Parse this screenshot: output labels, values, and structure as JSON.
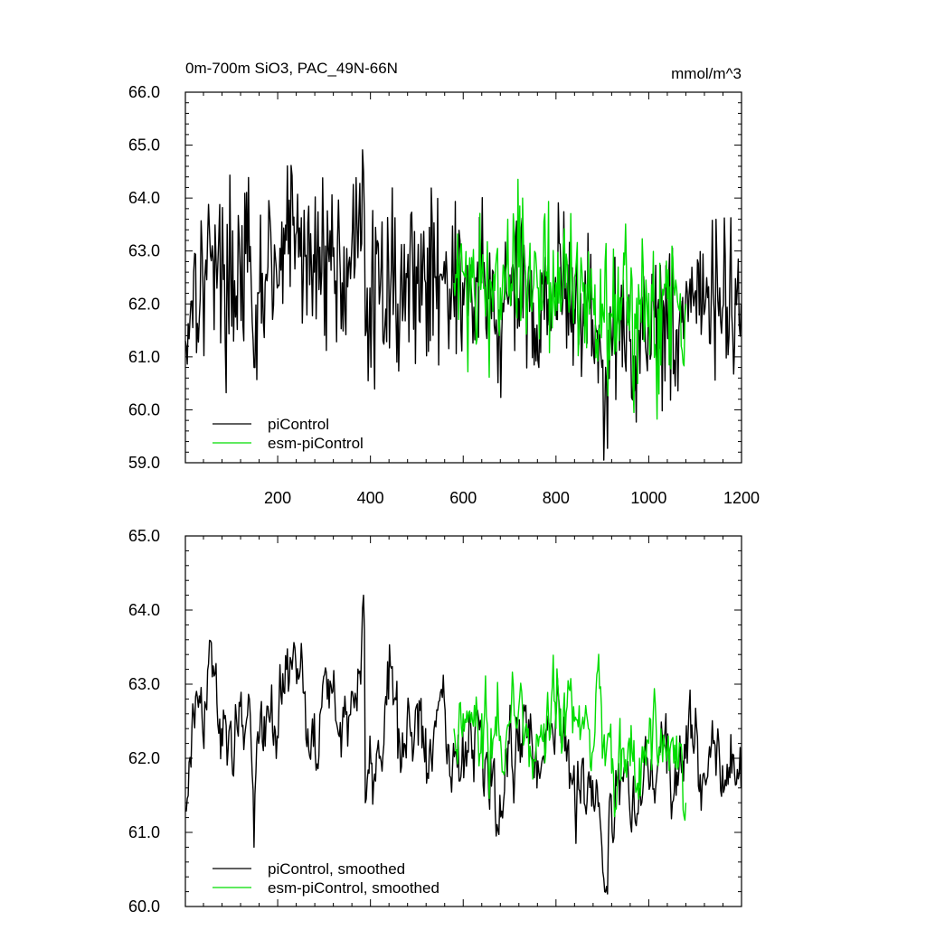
{
  "chart_data": [
    {
      "type": "line",
      "title": "0m-700m SiO3, PAC_49N-66N",
      "units": "mmol/m^3",
      "xlim": [
        1,
        1200
      ],
      "ylim": [
        59.0,
        66.0
      ],
      "x_ticks": [
        200,
        400,
        600,
        800,
        1000,
        1200
      ],
      "y_ticks": [
        "59.0",
        "60.0",
        "61.0",
        "62.0",
        "63.0",
        "64.0",
        "65.0",
        "66.0"
      ],
      "legend_position": "bottom-left",
      "series": [
        {
          "name": "piControl",
          "color": "#000000",
          "x": [
            1,
            20,
            40,
            60,
            80,
            100,
            120,
            140,
            150,
            160,
            180,
            200,
            220,
            240,
            260,
            280,
            300,
            320,
            340,
            360,
            380,
            385,
            390,
            400,
            420,
            440,
            460,
            480,
            500,
            520,
            540,
            560,
            580,
            600,
            620,
            640,
            660,
            680,
            700,
            720,
            740,
            760,
            780,
            800,
            820,
            840,
            860,
            880,
            900,
            905,
            920,
            940,
            960,
            980,
            1000,
            1020,
            1040,
            1060,
            1080,
            1100,
            1120,
            1140,
            1160,
            1180,
            1200
          ],
          "y": [
            61.3,
            62.6,
            62.3,
            63.1,
            62.4,
            62.5,
            62.7,
            62.8,
            60.8,
            62.2,
            62.7,
            62.3,
            63.2,
            63.3,
            62.9,
            62.6,
            63.1,
            62.9,
            62.4,
            62.9,
            63.0,
            64.5,
            61.4,
            62.3,
            62.0,
            62.8,
            62.0,
            62.5,
            62.7,
            62.4,
            62.5,
            62.8,
            62.2,
            62.4,
            62.0,
            62.4,
            62.1,
            61.5,
            62.2,
            62.1,
            62.3,
            61.6,
            62.4,
            62.5,
            62.1,
            61.9,
            62.0,
            61.7,
            60.8,
            59.9,
            61.5,
            61.7,
            61.3,
            61.5,
            61.8,
            61.9,
            61.8,
            61.5,
            62.0,
            62.2,
            61.8,
            62.2,
            61.9,
            61.8,
            62.0
          ]
        },
        {
          "name": "esm-piControl",
          "color": "#00dd00",
          "x": [
            580,
            600,
            620,
            640,
            660,
            680,
            700,
            720,
            740,
            760,
            780,
            800,
            820,
            840,
            860,
            880,
            900,
            920,
            940,
            960,
            980,
            1000,
            1020,
            1040,
            1060,
            1080
          ],
          "y": [
            62.4,
            62.6,
            62.5,
            62.6,
            62.4,
            62.3,
            62.5,
            62.7,
            62.4,
            62.3,
            62.6,
            62.4,
            62.3,
            62.5,
            62.4,
            62.1,
            62.0,
            61.8,
            61.7,
            61.9,
            62.0,
            62.2,
            61.9,
            62.1,
            62.3,
            62.0
          ]
        }
      ]
    },
    {
      "type": "line",
      "xlim": [
        1,
        1200
      ],
      "ylim": [
        60.0,
        65.0
      ],
      "y_ticks": [
        "60.0",
        "61.0",
        "62.0",
        "63.0",
        "64.0",
        "65.0"
      ],
      "legend_position": "bottom-left",
      "series": [
        {
          "name": "piControl, smoothed",
          "color": "#000000",
          "x": [
            1,
            20,
            40,
            60,
            80,
            100,
            120,
            140,
            150,
            160,
            180,
            200,
            220,
            240,
            260,
            280,
            300,
            320,
            340,
            360,
            380,
            385,
            390,
            400,
            420,
            440,
            460,
            480,
            500,
            520,
            540,
            560,
            580,
            600,
            620,
            640,
            660,
            680,
            700,
            720,
            740,
            760,
            780,
            800,
            820,
            840,
            860,
            880,
            900,
            905,
            920,
            940,
            960,
            980,
            1000,
            1020,
            1040,
            1060,
            1080,
            1100,
            1120,
            1140,
            1160,
            1180,
            1200
          ],
          "y": [
            61.3,
            62.6,
            62.3,
            63.1,
            62.4,
            62.5,
            62.7,
            62.8,
            60.8,
            62.2,
            62.7,
            62.3,
            63.2,
            63.3,
            62.9,
            62.6,
            63.1,
            62.9,
            62.4,
            62.9,
            63.0,
            64.2,
            61.4,
            62.3,
            62.0,
            62.8,
            62.0,
            62.5,
            62.7,
            62.4,
            62.5,
            62.8,
            62.2,
            62.4,
            62.0,
            62.4,
            62.1,
            61.5,
            62.2,
            62.1,
            62.3,
            61.6,
            62.4,
            62.5,
            62.1,
            61.9,
            62.0,
            61.7,
            60.8,
            60.2,
            61.5,
            61.7,
            61.3,
            61.5,
            61.8,
            61.9,
            61.8,
            61.5,
            62.0,
            62.2,
            61.8,
            62.2,
            61.9,
            61.8,
            61.6
          ]
        },
        {
          "name": "esm-piControl, smoothed",
          "color": "#00dd00",
          "x": [
            580,
            600,
            620,
            640,
            660,
            680,
            700,
            720,
            740,
            760,
            780,
            800,
            820,
            840,
            860,
            880,
            900,
            920,
            940,
            960,
            980,
            1000,
            1020,
            1040,
            1060,
            1080
          ],
          "y": [
            62.4,
            62.6,
            62.5,
            62.6,
            62.4,
            62.3,
            62.5,
            62.7,
            62.4,
            62.3,
            62.6,
            62.4,
            62.3,
            62.5,
            62.4,
            62.1,
            62.0,
            61.8,
            61.7,
            61.9,
            62.0,
            62.2,
            61.9,
            62.1,
            62.3,
            61.4
          ]
        }
      ]
    }
  ]
}
